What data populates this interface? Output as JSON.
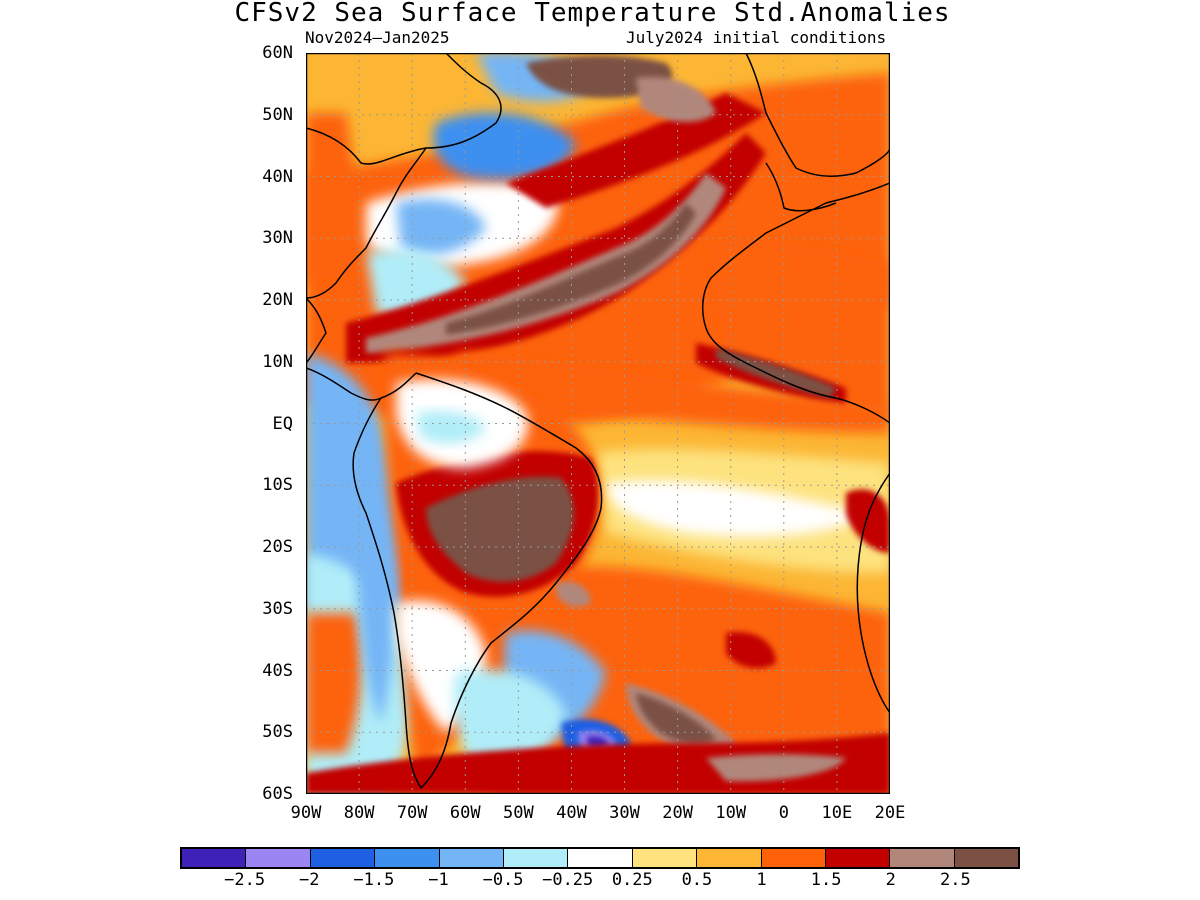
{
  "title": "CFSv2 Sea Surface Temperature Std.Anomalies",
  "period": "Nov2024–Jan2025",
  "initial_conditions": "July2024 initial conditions",
  "map": {
    "lon_range": [
      -90,
      20
    ],
    "lat_range": [
      -60,
      60
    ],
    "y_axis_labels": [
      "60N",
      "50N",
      "40N",
      "30N",
      "20N",
      "10N",
      "EQ",
      "10S",
      "20S",
      "30S",
      "40S",
      "50S",
      "60S"
    ],
    "x_axis_labels": [
      "90W",
      "80W",
      "70W",
      "60W",
      "50W",
      "40W",
      "30W",
      "20W",
      "10W",
      "0",
      "10E",
      "20E"
    ],
    "grid": "dotted",
    "coastlines": true
  },
  "colorbar": {
    "colors": [
      "#3e22b8",
      "#9a85f2",
      "#1e5fe3",
      "#3d8ff0",
      "#74b5f6",
      "#b0edf8",
      "#ffffff",
      "#fde27e",
      "#fcb634",
      "#fd6208",
      "#c20000",
      "#b1877c",
      "#7c5144"
    ],
    "labels": [
      "−2.5",
      "−2",
      "−1.5",
      "−1",
      "−0.5",
      "−0.25",
      "0.25",
      "0.5",
      "1",
      "1.5",
      "2",
      "2.5"
    ]
  },
  "anomaly_fields": [
    {
      "region": "Caribbean / tropical North Atlantic band",
      "category": 2.5
    },
    {
      "region": "Subtropical North Atlantic diagonal",
      "category": 2.5
    },
    {
      "region": "Central South America (interior)",
      "category": 2.5
    },
    {
      "region": "North Atlantic near 55N 40W",
      "category": 2.5
    },
    {
      "region": "Southwest Atlantic 45S 25W",
      "category": 2.5
    },
    {
      "region": "Southern Ocean 58S 10W",
      "category": 2.5
    },
    {
      "region": "Gulf Stream region 40N 60W",
      "category": -1.0
    },
    {
      "region": "Eastern Pacific off Ecuador/Peru",
      "category": -0.5
    },
    {
      "region": "Amazon basin",
      "category": 0.0
    },
    {
      "region": "Southwest Atlantic 50S 40W",
      "category": -2.0
    },
    {
      "region": "Eastern tropical Atlantic",
      "category": 0.5
    }
  ]
}
